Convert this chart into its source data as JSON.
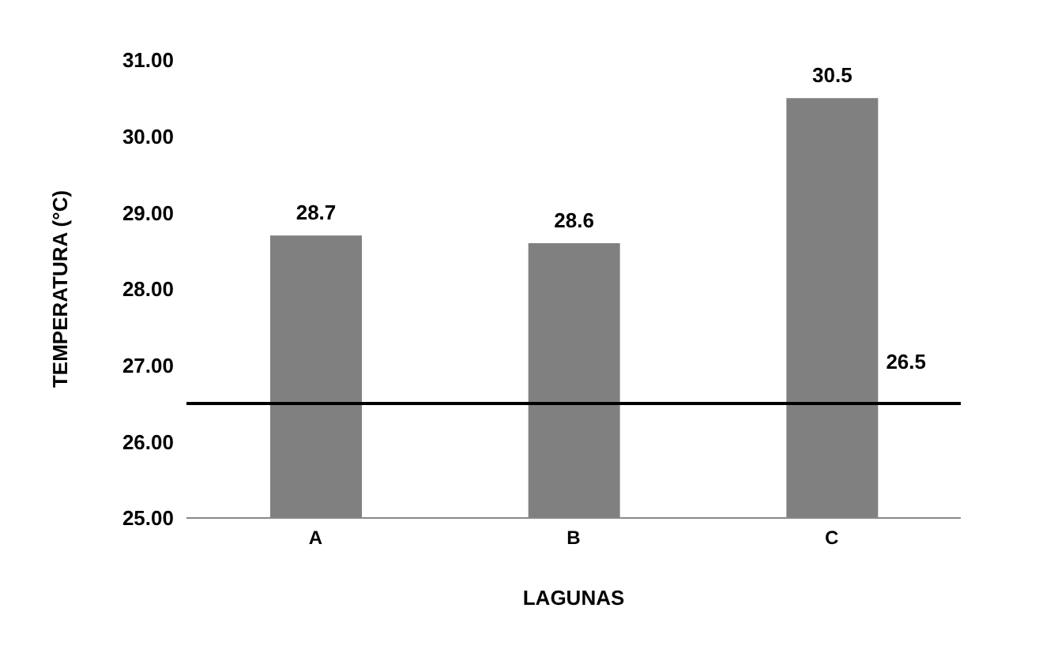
{
  "chart_data": {
    "type": "bar",
    "xlabel": "LAGUNAS",
    "ylabel": "TEMPERATURA (°C)",
    "categories": [
      "A",
      "B",
      "C"
    ],
    "values": [
      28.7,
      28.6,
      30.5
    ],
    "color": "#808080",
    "ylim": [
      25,
      31
    ],
    "yticks": [
      {
        "value": 25,
        "label": "25.00"
      },
      {
        "value": 26,
        "label": "26.00"
      },
      {
        "value": 27,
        "label": "27.00"
      },
      {
        "value": 28,
        "label": "28.00"
      },
      {
        "value": 29,
        "label": "29.00"
      },
      {
        "value": 30,
        "label": "30.00"
      },
      {
        "value": 31,
        "label": "31.00"
      }
    ],
    "data_labels": true,
    "grid": false,
    "ref_lines": [
      {
        "axis": "y",
        "value": 26.5,
        "label": "26.5",
        "color": "#000000"
      }
    ]
  }
}
